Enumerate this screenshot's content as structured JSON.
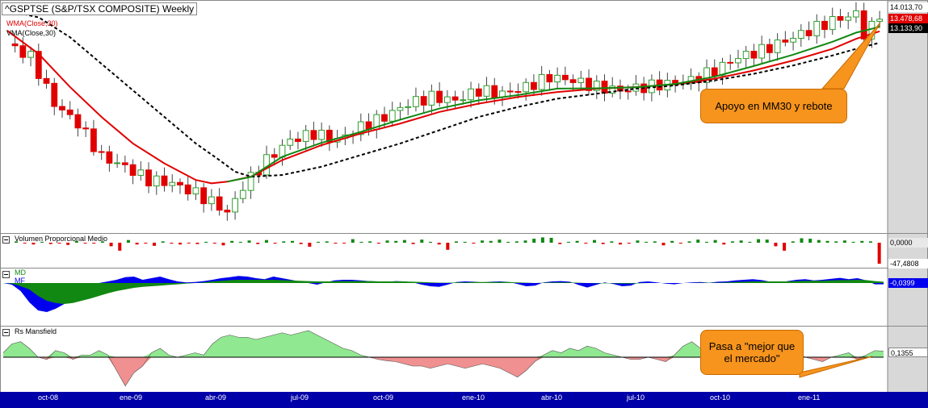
{
  "chart_data": [
    {
      "type": "candlestick",
      "title": "^GSPTSE (S&P/TSX COMPOSITE) Weekly",
      "legend": [
        "WMA(Close,30)",
        "VMA(Close,30)"
      ],
      "series_colors": {
        "WMA(Close,30)": "#e00000",
        "VMA(Close,30)": "#000000",
        "price_up": "#2e9e2e",
        "price_down": "#e00000",
        "mm30": "#118811"
      },
      "ylim": [
        7500,
        14300
      ],
      "price_tags": [
        "14.013,70",
        "13.478,68",
        "13.133,90"
      ],
      "x_tick_labels": [
        "oct-08",
        "ene-09",
        "abr-09",
        "jul-09",
        "oct-09",
        "ene-10",
        "abr-10",
        "jul-10",
        "oct-10",
        "ene-11"
      ],
      "close_points": [
        [
          0,
          13100
        ],
        [
          3,
          12700
        ],
        [
          6,
          11300
        ],
        [
          9,
          10700
        ],
        [
          12,
          9700
        ],
        [
          15,
          9400
        ],
        [
          18,
          9000
        ],
        [
          21,
          8900
        ],
        [
          24,
          8600
        ],
        [
          27,
          8200
        ],
        [
          28,
          8000
        ],
        [
          30,
          8800
        ],
        [
          33,
          9600
        ],
        [
          36,
          10200
        ],
        [
          39,
          10400
        ],
        [
          42,
          10200
        ],
        [
          45,
          10600
        ],
        [
          48,
          10900
        ],
        [
          51,
          11300
        ],
        [
          54,
          11500
        ],
        [
          57,
          11400
        ],
        [
          60,
          11700
        ],
        [
          63,
          11600
        ],
        [
          66,
          11800
        ],
        [
          69,
          12100
        ],
        [
          72,
          12000
        ],
        [
          75,
          11800
        ],
        [
          78,
          11700
        ],
        [
          81,
          11800
        ],
        [
          84,
          11900
        ],
        [
          87,
          12000
        ],
        [
          90,
          12300
        ],
        [
          93,
          12700
        ],
        [
          96,
          12900
        ],
        [
          99,
          13200
        ],
        [
          102,
          13500
        ],
        [
          105,
          13800
        ],
        [
          108,
          14000
        ],
        [
          109,
          13400
        ],
        [
          110,
          13600
        ],
        [
          111,
          14013.7
        ]
      ],
      "wma_points": [
        [
          0,
          13500
        ],
        [
          4,
          12800
        ],
        [
          8,
          11800
        ],
        [
          12,
          10900
        ],
        [
          16,
          10100
        ],
        [
          20,
          9500
        ],
        [
          24,
          9000
        ],
        [
          26,
          8900
        ],
        [
          28,
          8950
        ],
        [
          31,
          9100
        ],
        [
          35,
          9600
        ],
        [
          40,
          10050
        ],
        [
          45,
          10400
        ],
        [
          50,
          10700
        ],
        [
          55,
          11050
        ],
        [
          60,
          11300
        ],
        [
          65,
          11500
        ],
        [
          70,
          11650
        ],
        [
          75,
          11750
        ],
        [
          80,
          11800
        ],
        [
          85,
          11880
        ],
        [
          90,
          12050
        ],
        [
          95,
          12300
        ],
        [
          100,
          12600
        ],
        [
          105,
          12950
        ],
        [
          108,
          13250
        ],
        [
          111,
          13478.68
        ]
      ],
      "vma_points": [
        [
          0,
          14100
        ],
        [
          4,
          13900
        ],
        [
          8,
          13300
        ],
        [
          12,
          12500
        ],
        [
          16,
          11700
        ],
        [
          20,
          10900
        ],
        [
          24,
          10100
        ],
        [
          27,
          9600
        ],
        [
          29,
          9250
        ],
        [
          31,
          9100
        ],
        [
          35,
          9150
        ],
        [
          40,
          9400
        ],
        [
          45,
          9750
        ],
        [
          50,
          10100
        ],
        [
          55,
          10500
        ],
        [
          60,
          10900
        ],
        [
          65,
          11200
        ],
        [
          70,
          11450
        ],
        [
          75,
          11600
        ],
        [
          80,
          11750
        ],
        [
          85,
          11850
        ],
        [
          90,
          12000
        ],
        [
          95,
          12200
        ],
        [
          100,
          12450
        ],
        [
          105,
          12750
        ],
        [
          108,
          12950
        ],
        [
          111,
          13133.9
        ]
      ]
    },
    {
      "type": "bar",
      "title": "Volumen Proporcional Medio",
      "ylim": [
        -50,
        20
      ],
      "value_tags": [
        "0,0000",
        "-47,4808"
      ],
      "values": [
        -2,
        3,
        -1,
        -4,
        2,
        -3,
        -2,
        -5,
        4,
        -1,
        -2,
        3,
        -8,
        -18,
        6,
        -4,
        -2,
        -7,
        3,
        -2,
        -4,
        -1,
        -3,
        2,
        -2,
        -6,
        4,
        2,
        5,
        -3,
        6,
        -2,
        3,
        4,
        -3,
        -9,
        2,
        3,
        -2,
        -1,
        8,
        2,
        3,
        -2,
        5,
        4,
        6,
        -3,
        7,
        2,
        -4,
        -16,
        3,
        2,
        -2,
        5,
        4,
        7,
        2,
        3,
        5,
        9,
        12,
        11,
        -3,
        2,
        4,
        -2,
        6,
        -3,
        3,
        -4,
        -2,
        5,
        2,
        3,
        -6,
        4,
        -2,
        3,
        7,
        2,
        6,
        -4,
        3,
        5,
        2,
        8,
        7,
        -8,
        -18,
        3,
        10,
        9,
        6,
        4,
        3,
        5,
        2,
        4,
        3,
        -47.4808
      ]
    },
    {
      "type": "area",
      "series": [
        {
          "name": "MD",
          "color": "#0000ee"
        },
        {
          "name": "MF",
          "color": "#118811"
        }
      ],
      "value_tags": [
        "-0,0399"
      ],
      "ylim": [
        -1,
        0.3
      ],
      "md_values": [
        0,
        -0.05,
        -0.25,
        -0.6,
        -0.85,
        -0.9,
        -0.8,
        -0.65,
        -0.4,
        -0.2,
        -0.1,
        0,
        0.05,
        0.1,
        0.18,
        0.2,
        0.1,
        0.15,
        0.2,
        0.12,
        0.05,
        0.02,
        0.03,
        0.06,
        0.1,
        0.15,
        0.18,
        0.22,
        0.2,
        0.15,
        0.12,
        0.2,
        0.15,
        0.1,
        0.05,
        0.0,
        -0.05,
        0.02,
        0.08,
        0.1,
        0.1,
        0.08,
        0.06,
        0.05,
        0.03,
        0.06,
        0.05,
        0.02,
        -0.05,
        -0.1,
        -0.12,
        -0.05,
        0.03,
        0.05,
        0.04,
        0.02,
        0.04,
        0.05,
        0.03,
        -0.03,
        -0.1,
        -0.08,
        0.02,
        0.05,
        0.06,
        0.04,
        -0.06,
        -0.14,
        -0.06,
        0.02,
        -0.03,
        -0.1,
        -0.08,
        0.03,
        0.05,
        0.02,
        -0.02,
        -0.04,
        0.0,
        0.02,
        0.03,
        0.01,
        0.04,
        0.05,
        0.08,
        0.1,
        0.12,
        0.09,
        0.04,
        0.02,
        0.06,
        0.1,
        0.12,
        0.08,
        0.1,
        0.13,
        0.16,
        0.12,
        0.15,
        0.08,
        -0.04,
        -0.0399
      ],
      "mf_values": [
        0,
        -0.02,
        -0.1,
        -0.2,
        -0.4,
        -0.55,
        -0.62,
        -0.65,
        -0.62,
        -0.55,
        -0.48,
        -0.4,
        -0.32,
        -0.25,
        -0.2,
        -0.15,
        -0.12,
        -0.1,
        -0.08,
        -0.06,
        -0.04,
        -0.02,
        0.0,
        0.02,
        0.05,
        0.07,
        0.09,
        0.1,
        0.1,
        0.1,
        0.1,
        0.1,
        0.09,
        0.08,
        0.07,
        0.06,
        0.05,
        0.05,
        0.05,
        0.06,
        0.06,
        0.06,
        0.06,
        0.05,
        0.05,
        0.05,
        0.05,
        0.04,
        0.03,
        0.02,
        0.01,
        0.01,
        0.02,
        0.02,
        0.03,
        0.03,
        0.03,
        0.03,
        0.03,
        0.02,
        0.01,
        0.0,
        0.01,
        0.02,
        0.02,
        0.02,
        0.01,
        0.0,
        -0.01,
        -0.01,
        -0.01,
        -0.02,
        -0.02,
        -0.01,
        0.0,
        0.0,
        0.0,
        0.0,
        0.0,
        0.0,
        0.01,
        0.01,
        0.01,
        0.02,
        0.03,
        0.04,
        0.05,
        0.05,
        0.05,
        0.05,
        0.05,
        0.06,
        0.07,
        0.07,
        0.07,
        0.08,
        0.09,
        0.09,
        0.1,
        0.09,
        0.06,
        0.04
      ]
    },
    {
      "type": "area",
      "title": "Rs Mansfield",
      "value_tags": [
        "0,1355"
      ],
      "ylim": [
        -0.7,
        0.7
      ],
      "values": [
        0.1,
        0.3,
        0.35,
        0.2,
        0.0,
        -0.05,
        0.15,
        0.1,
        -0.05,
        0.05,
        0.05,
        0.15,
        0.05,
        -0.3,
        -0.65,
        -0.35,
        -0.2,
        0.1,
        0.2,
        0.05,
        0.0,
        0.05,
        0.1,
        0.05,
        0.3,
        0.45,
        0.5,
        0.45,
        0.45,
        0.4,
        0.45,
        0.5,
        0.55,
        0.5,
        0.55,
        0.6,
        0.5,
        0.4,
        0.3,
        0.2,
        0.15,
        0.05,
        0.0,
        -0.05,
        -0.08,
        -0.1,
        -0.15,
        -0.2,
        -0.2,
        -0.25,
        -0.2,
        -0.15,
        -0.2,
        -0.25,
        -0.2,
        -0.15,
        -0.2,
        -0.25,
        -0.35,
        -0.45,
        -0.3,
        -0.1,
        0.05,
        0.15,
        0.1,
        0.2,
        0.15,
        0.25,
        0.2,
        0.1,
        0.05,
        0.0,
        -0.05,
        -0.05,
        0.0,
        -0.05,
        -0.1,
        0.05,
        0.25,
        0.35,
        0.2,
        0.1,
        0.15,
        0.2,
        0.05,
        -0.05,
        0.0,
        0.05,
        -0.05,
        0.0,
        0.05,
        0.1,
        0.0,
        -0.05,
        -0.1,
        0.0,
        0.05,
        0.1,
        -0.05,
        0.05,
        0.15,
        0.1355
      ]
    }
  ],
  "annotations": {
    "callout_1": "Apoyo en MM30 y rebote",
    "callout_2": "Pasa a \"mejor que el mercado\""
  },
  "panel_labels": {
    "md_label": "MD",
    "mf_label": "MF"
  },
  "colors": {
    "axis_bar": "#0000a8",
    "right_scale": "#d8d8d8",
    "callout_bg": "#f7941d",
    "rs_positive": "#90e890",
    "rs_negative": "#f09090"
  }
}
